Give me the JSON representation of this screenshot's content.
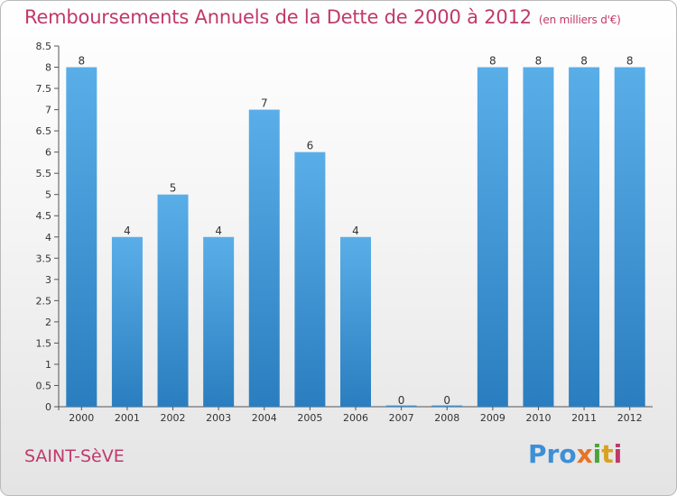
{
  "chart_data": {
    "type": "bar",
    "title": "Remboursements Annuels de la Dette de 2000 à 2012",
    "unit_note": "(en milliers d'€)",
    "categories": [
      "2000",
      "2001",
      "2002",
      "2003",
      "2004",
      "2005",
      "2006",
      "2007",
      "2008",
      "2009",
      "2010",
      "2011",
      "2012"
    ],
    "values": [
      8,
      4,
      5,
      4,
      7,
      6,
      4,
      0,
      0,
      8,
      8,
      8,
      8
    ],
    "data_labels": [
      "8",
      "4",
      "5",
      "4",
      "7",
      "6",
      "4",
      "0",
      "0",
      "8",
      "8",
      "8",
      "8"
    ],
    "y_ticks": [
      "0",
      "0.5",
      "1",
      "1.5",
      "2",
      "2.5",
      "3",
      "3.5",
      "4",
      "4.5",
      "5",
      "5.5",
      "6",
      "6.5",
      "7",
      "7.5",
      "8",
      "8.5"
    ],
    "ylim": [
      0,
      8.5
    ],
    "grid": false,
    "bar_color_top": "#5aaee8",
    "bar_color_bottom": "#2a7ebf"
  },
  "commune": "SAINT-SèVE",
  "logo": {
    "parts": [
      "Pro",
      "x",
      "i",
      "t",
      "i"
    ],
    "colors": [
      "#3d8fd6",
      "#e8732a",
      "#4ba33a",
      "#d9a21f",
      "#c0396b"
    ]
  }
}
